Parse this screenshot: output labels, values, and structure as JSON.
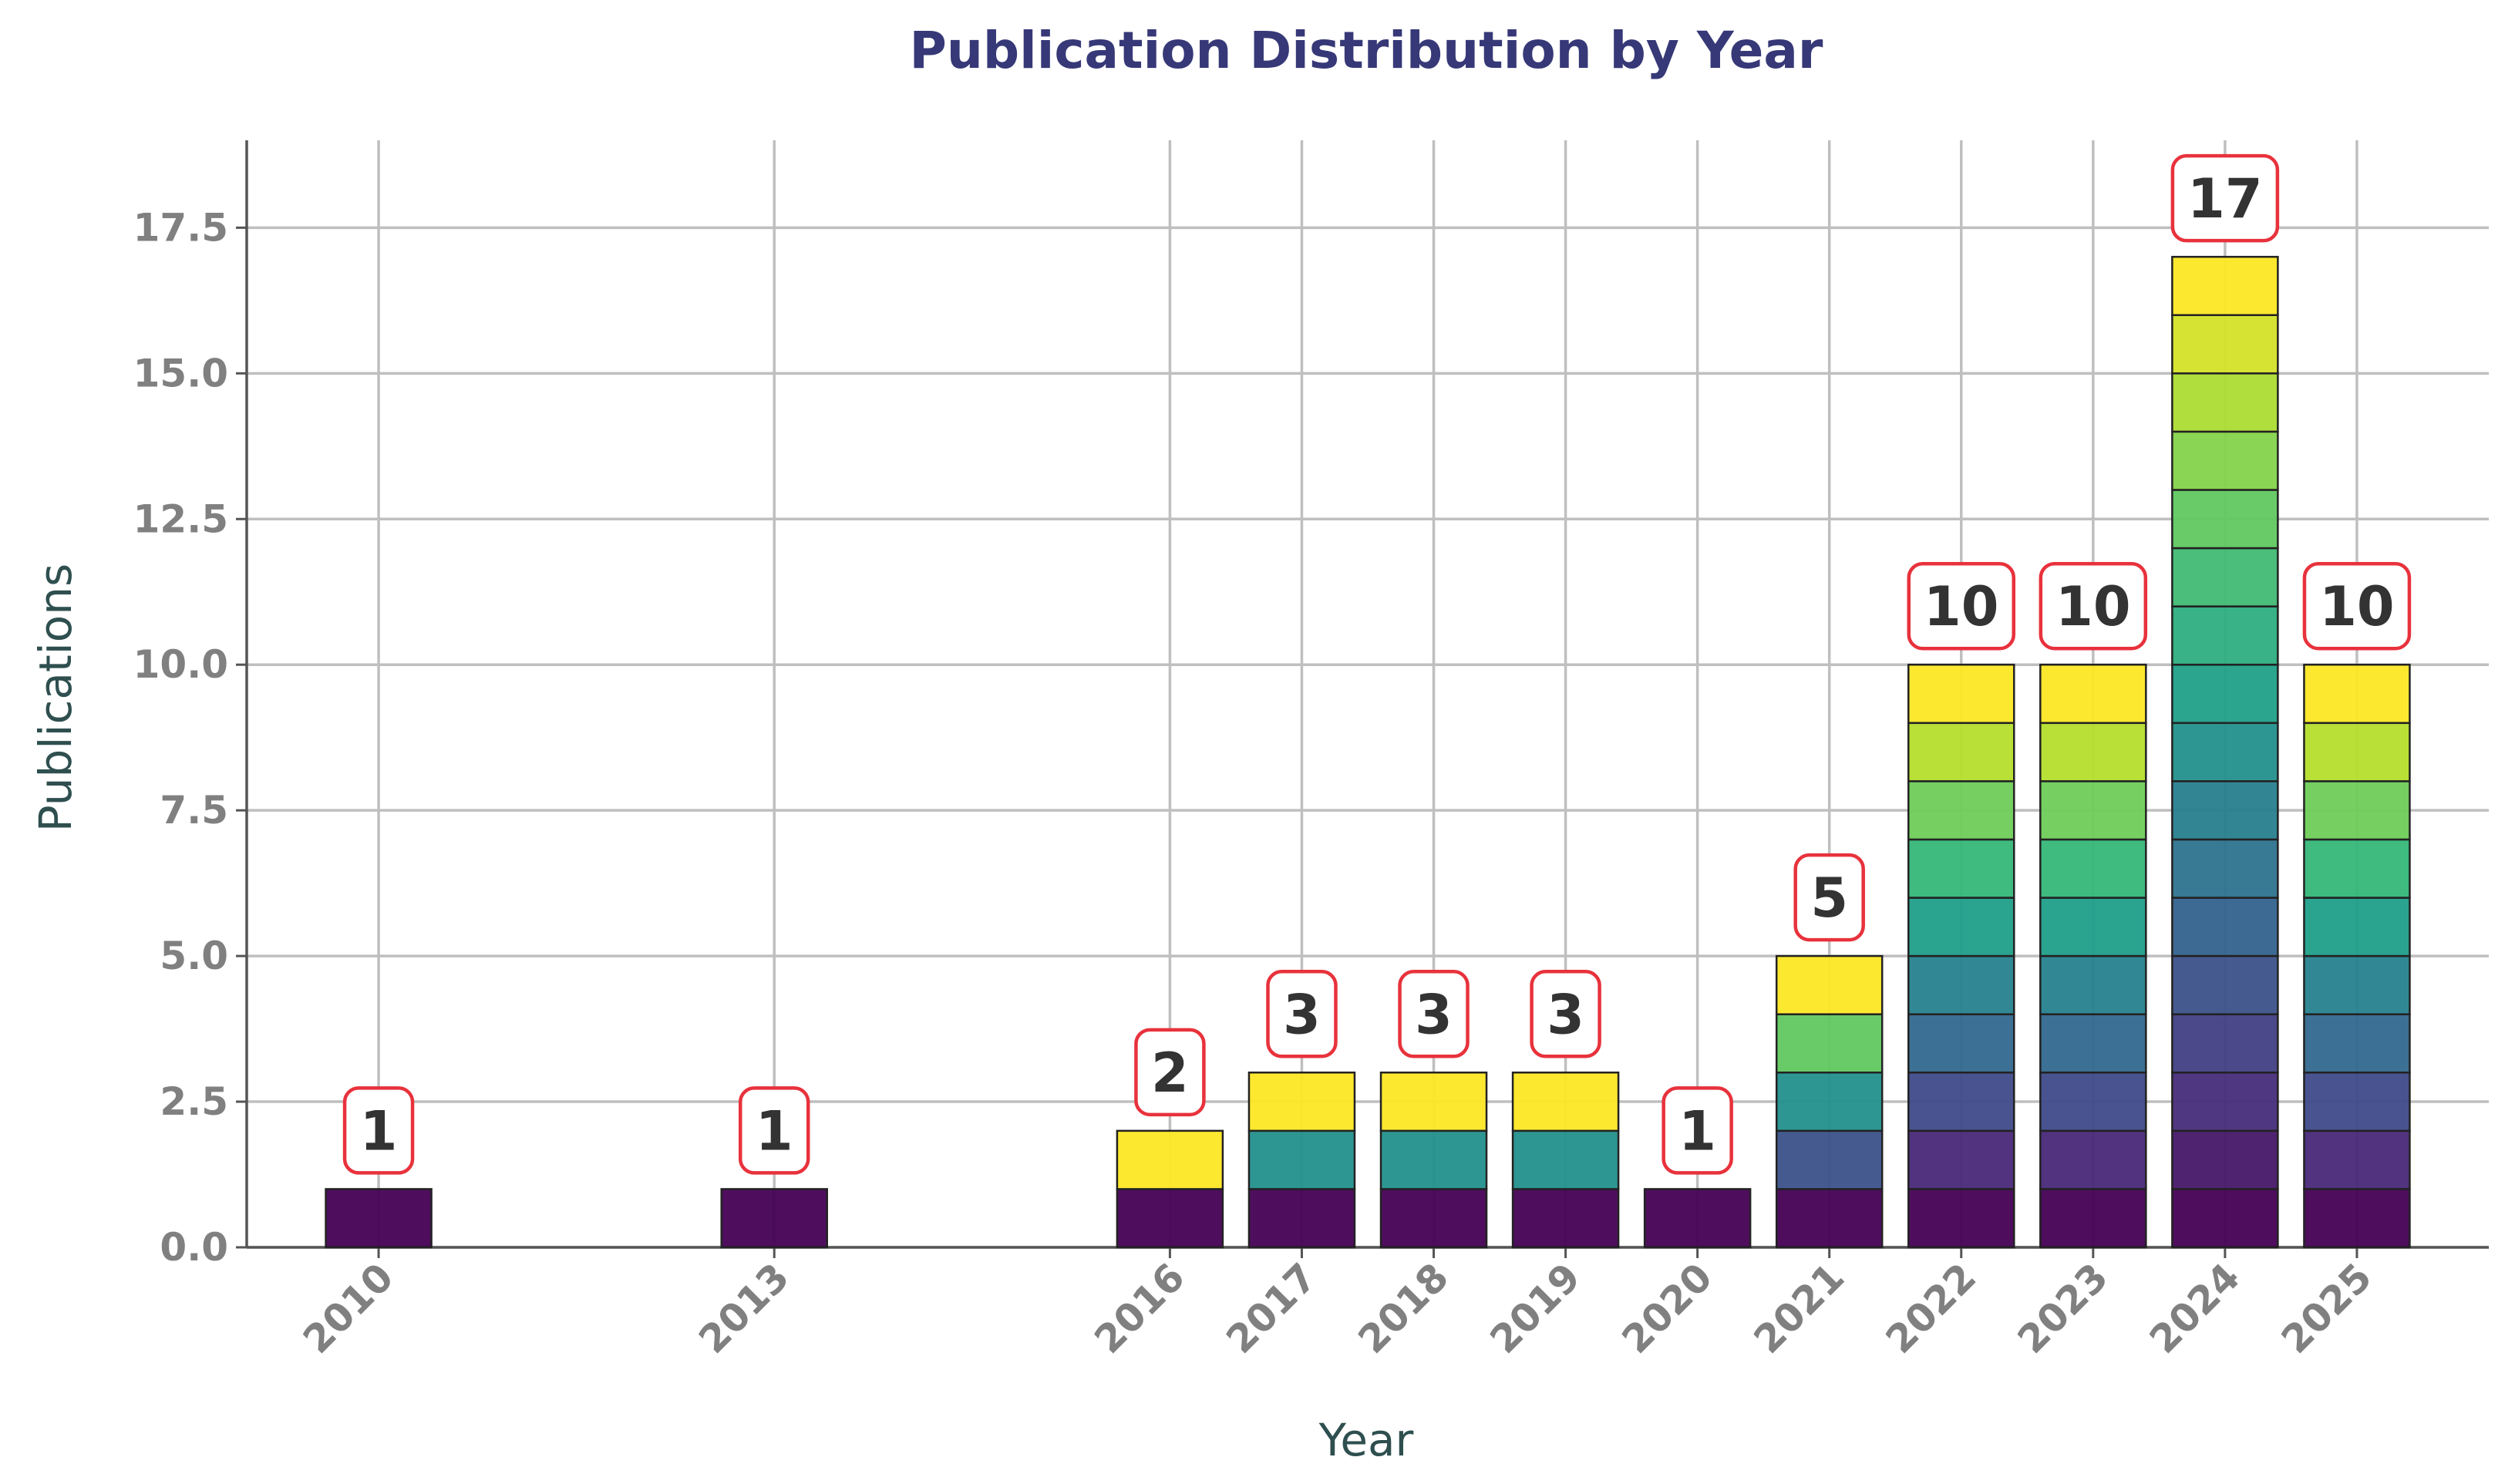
{
  "chart_data": {
    "type": "bar",
    "stacked": true,
    "title": "Publication Distribution by Year",
    "xlabel": "Year",
    "ylabel": "Publications",
    "ylim": [
      0,
      19
    ],
    "yticks": [
      "0.0",
      "2.5",
      "5.0",
      "7.5",
      "10.0",
      "12.5",
      "15.0",
      "17.5"
    ],
    "categories": [
      "2010",
      "2013",
      "2016",
      "2017",
      "2018",
      "2019",
      "2020",
      "2021",
      "2022",
      "2023",
      "2024",
      "2025"
    ],
    "values": [
      1,
      1,
      2,
      3,
      3,
      3,
      1,
      5,
      10,
      10,
      17,
      10
    ],
    "value_labels": [
      "1",
      "1",
      "2",
      "3",
      "3",
      "3",
      "1",
      "5",
      "10",
      "10",
      "17",
      "10"
    ],
    "grid": true,
    "colormap": "viridis"
  },
  "colors": {
    "title": "#363877",
    "axis_label": "#2f4f4f",
    "tick": "#808080",
    "grid": "#bfbfbf",
    "label_box_edge": "#e8323c",
    "label_text": "#333333",
    "segment_edge": "#222222"
  }
}
